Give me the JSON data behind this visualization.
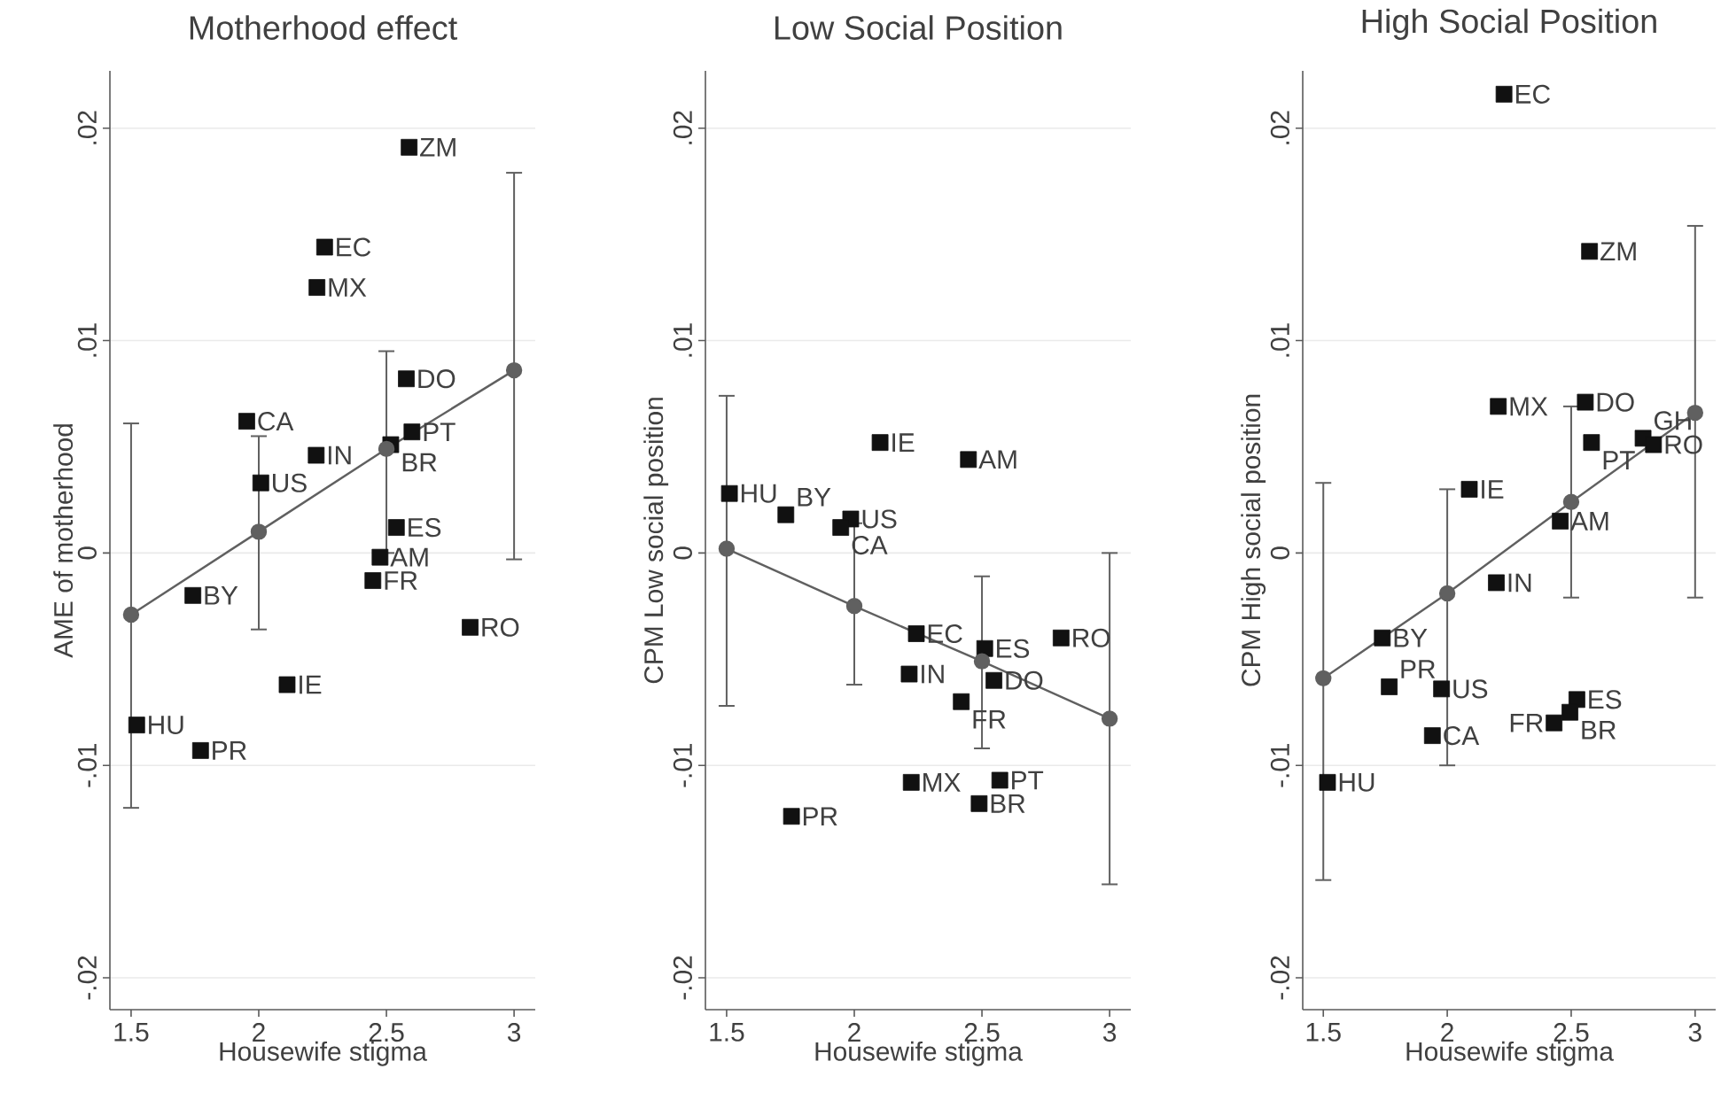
{
  "chart_data": [
    {
      "type": "scatter",
      "title": "Motherhood effect",
      "xlabel": "Housewife stigma",
      "ylabel": "AME of motherhood",
      "xlim": [
        1.417,
        3.083
      ],
      "ylim": [
        -0.0215,
        0.0227
      ],
      "xticks": [
        1.5,
        2,
        2.5,
        3
      ],
      "yticks": [
        {
          "value": -0.02,
          "label": "-.02"
        },
        {
          "value": -0.01,
          "label": "-.01"
        },
        {
          "value": 0,
          "label": "0"
        },
        {
          "value": 0.01,
          "label": ".01"
        },
        {
          "value": 0.02,
          "label": ".02"
        }
      ],
      "grid": "y",
      "series": [
        {
          "type": "scatter",
          "marker": "square",
          "color": "#111111",
          "x": [
            2.589,
            2.258,
            2.228,
            2.578,
            1.953,
            2.6,
            2.517,
            2.225,
            2.008,
            2.539,
            2.475,
            2.447,
            1.742,
            2.828,
            2.111,
            1.522,
            1.772
          ],
          "values": [
            0.0191,
            0.0144,
            0.0125,
            0.0082,
            0.0062,
            0.0057,
            0.0051,
            0.0046,
            0.0033,
            0.0012,
            -0.0002,
            -0.0013,
            -0.002,
            -0.0035,
            -0.0062,
            -0.0081,
            -0.0093
          ]
        },
        {
          "type": "line",
          "marker": "circle",
          "color": "#606060",
          "x": [
            1.5,
            2,
            2.5,
            3
          ],
          "values": [
            -0.0029,
            0.001,
            0.0049,
            0.0086
          ],
          "errors": [
            [
              -0.012,
              0.0061
            ],
            [
              -0.0036,
              0.0055
            ],
            [
              0.0,
              0.0095
            ],
            [
              -0.0003,
              0.0179
            ]
          ]
        }
      ],
      "annotations": [
        {
          "text": "ZM",
          "x": 2.589,
          "y": 0.0191
        },
        {
          "text": "EC",
          "x": 2.258,
          "y": 0.0144
        },
        {
          "text": "MX",
          "x": 2.228,
          "y": 0.0125
        },
        {
          "text": "DO",
          "x": 2.578,
          "y": 0.0082
        },
        {
          "text": "CA",
          "x": 1.953,
          "y": 0.0062
        },
        {
          "text": "PT",
          "x": 2.6,
          "y": 0.0057
        },
        {
          "text": "BR",
          "x": 2.517,
          "y": 0.0051
        },
        {
          "text": "IN",
          "x": 2.225,
          "y": 0.0046
        },
        {
          "text": "US",
          "x": 2.008,
          "y": 0.0033
        },
        {
          "text": "ES",
          "x": 2.539,
          "y": 0.0012
        },
        {
          "text": "AM",
          "x": 2.475,
          "y": -0.0002
        },
        {
          "text": "FR",
          "x": 2.447,
          "y": -0.0013
        },
        {
          "text": "BY",
          "x": 1.742,
          "y": -0.002
        },
        {
          "text": "RO",
          "x": 2.828,
          "y": -0.0035
        },
        {
          "text": "IE",
          "x": 2.111,
          "y": -0.0062
        },
        {
          "text": "HU",
          "x": 1.522,
          "y": -0.0081
        },
        {
          "text": "PR",
          "x": 1.772,
          "y": -0.0093
        }
      ]
    },
    {
      "type": "scatter",
      "title": "Low Social Position",
      "xlabel": "Housewife stigma",
      "ylabel": "CPM Low social position",
      "xlim": [
        1.417,
        3.083
      ],
      "ylim": [
        -0.0215,
        0.0227
      ],
      "xticks": [
        1.5,
        2,
        2.5,
        3
      ],
      "yticks": [
        {
          "value": -0.02,
          "label": "-.02"
        },
        {
          "value": -0.01,
          "label": "-.01"
        },
        {
          "value": 0,
          "label": "0"
        },
        {
          "value": 0.01,
          "label": ".01"
        },
        {
          "value": 0.02,
          "label": ".02"
        }
      ],
      "grid": "y",
      "series": [
        {
          "type": "scatter",
          "marker": "square",
          "color": "#111111",
          "x": [
            2.101,
            2.447,
            1.511,
            1.732,
            1.986,
            1.947,
            2.243,
            2.511,
            2.81,
            2.215,
            2.547,
            2.419,
            2.223,
            2.57,
            2.489,
            1.754
          ],
          "values": [
            0.0052,
            0.0044,
            0.0028,
            0.0018,
            0.0016,
            0.0012,
            -0.0038,
            -0.0045,
            -0.004,
            -0.0057,
            -0.006,
            -0.007,
            -0.0108,
            -0.0107,
            -0.0118,
            -0.0124
          ]
        },
        {
          "type": "line",
          "marker": "circle",
          "color": "#606060",
          "x": [
            1.5,
            2,
            2.5,
            3
          ],
          "values": [
            0.0002,
            -0.0025,
            -0.0051,
            -0.0078
          ],
          "errors": [
            [
              -0.0072,
              0.0074
            ],
            [
              -0.0062,
              0.0014
            ],
            [
              -0.0092,
              -0.0011
            ],
            [
              -0.0156,
              0.0
            ]
          ]
        }
      ],
      "annotations": [
        {
          "text": "IE",
          "x": 2.101,
          "y": 0.0052
        },
        {
          "text": "AM",
          "x": 2.447,
          "y": 0.0044
        },
        {
          "text": "HU",
          "x": 1.511,
          "y": 0.0028
        },
        {
          "text": "BY",
          "x": 1.732,
          "y": 0.0018
        },
        {
          "text": "US",
          "x": 1.986,
          "y": 0.0016
        },
        {
          "text": "CA",
          "x": 1.947,
          "y": 0.0012
        },
        {
          "text": "EC",
          "x": 2.243,
          "y": -0.0038
        },
        {
          "text": "ES",
          "x": 2.511,
          "y": -0.0045
        },
        {
          "text": "RO",
          "x": 2.81,
          "y": -0.004
        },
        {
          "text": "IN",
          "x": 2.215,
          "y": -0.0057
        },
        {
          "text": "DO",
          "x": 2.547,
          "y": -0.006
        },
        {
          "text": "FR",
          "x": 2.419,
          "y": -0.007
        },
        {
          "text": "MX",
          "x": 2.223,
          "y": -0.0108
        },
        {
          "text": "PT",
          "x": 2.57,
          "y": -0.0107
        },
        {
          "text": "BR",
          "x": 2.489,
          "y": -0.0118
        },
        {
          "text": "PR",
          "x": 1.754,
          "y": -0.0124
        }
      ]
    },
    {
      "type": "scatter",
      "title": "High Social Position",
      "xlabel": "Housewife stigma",
      "ylabel": "CPM High social position",
      "xlim": [
        1.417,
        3.083
      ],
      "ylim": [
        -0.0215,
        0.0227
      ],
      "xticks": [
        1.5,
        2,
        2.5,
        3
      ],
      "yticks": [
        {
          "value": -0.02,
          "label": "-.02"
        },
        {
          "value": -0.01,
          "label": "-.01"
        },
        {
          "value": 0,
          "label": "0"
        },
        {
          "value": 0.01,
          "label": ".01"
        },
        {
          "value": 0.02,
          "label": ".02"
        }
      ],
      "grid": "y",
      "series": [
        {
          "type": "scatter",
          "marker": "square",
          "color": "#111111",
          "x": [
            2.229,
            2.574,
            2.206,
            2.557,
            2.582,
            2.79,
            2.832,
            2.089,
            2.456,
            2.198,
            1.738,
            1.766,
            1.977,
            1.94,
            2.523,
            2.495,
            2.431,
            1.517
          ],
          "values": [
            0.0216,
            0.0142,
            0.0069,
            0.0071,
            0.0052,
            0.0054,
            0.0051,
            0.003,
            0.0015,
            -0.0014,
            -0.004,
            -0.0063,
            -0.0064,
            -0.0086,
            -0.0069,
            -0.0075,
            -0.008,
            -0.0108
          ]
        },
        {
          "type": "line",
          "marker": "circle",
          "color": "#606060",
          "x": [
            1.5,
            2,
            2.5,
            3
          ],
          "values": [
            -0.0059,
            -0.0019,
            0.0024,
            0.0066
          ],
          "errors": [
            [
              -0.0154,
              0.0033
            ],
            [
              -0.01,
              0.003
            ],
            [
              -0.0021,
              0.0069
            ],
            [
              -0.0021,
              0.0154
            ]
          ]
        }
      ],
      "annotations": [
        {
          "text": "EC",
          "x": 2.229,
          "y": 0.0216
        },
        {
          "text": "ZM",
          "x": 2.574,
          "y": 0.0142
        },
        {
          "text": "MX",
          "x": 2.206,
          "y": 0.0069
        },
        {
          "text": "DO",
          "x": 2.557,
          "y": 0.0071
        },
        {
          "text": "PT",
          "x": 2.582,
          "y": 0.0052
        },
        {
          "text": "GH",
          "x": 2.79,
          "y": 0.0054
        },
        {
          "text": "RO",
          "x": 2.832,
          "y": 0.0051
        },
        {
          "text": "IE",
          "x": 2.089,
          "y": 0.003
        },
        {
          "text": "AM",
          "x": 2.456,
          "y": 0.0015
        },
        {
          "text": "IN",
          "x": 2.198,
          "y": -0.0014
        },
        {
          "text": "BY",
          "x": 1.738,
          "y": -0.004
        },
        {
          "text": "PR",
          "x": 1.766,
          "y": -0.0063
        },
        {
          "text": "US",
          "x": 1.977,
          "y": -0.0064
        },
        {
          "text": "CA",
          "x": 1.94,
          "y": -0.0086
        },
        {
          "text": "ES",
          "x": 2.523,
          "y": -0.0069
        },
        {
          "text": "BR",
          "x": 2.495,
          "y": -0.0075
        },
        {
          "text": "FR",
          "x": 2.431,
          "y": -0.008
        },
        {
          "text": "HU",
          "x": 1.517,
          "y": -0.0108
        }
      ]
    }
  ]
}
